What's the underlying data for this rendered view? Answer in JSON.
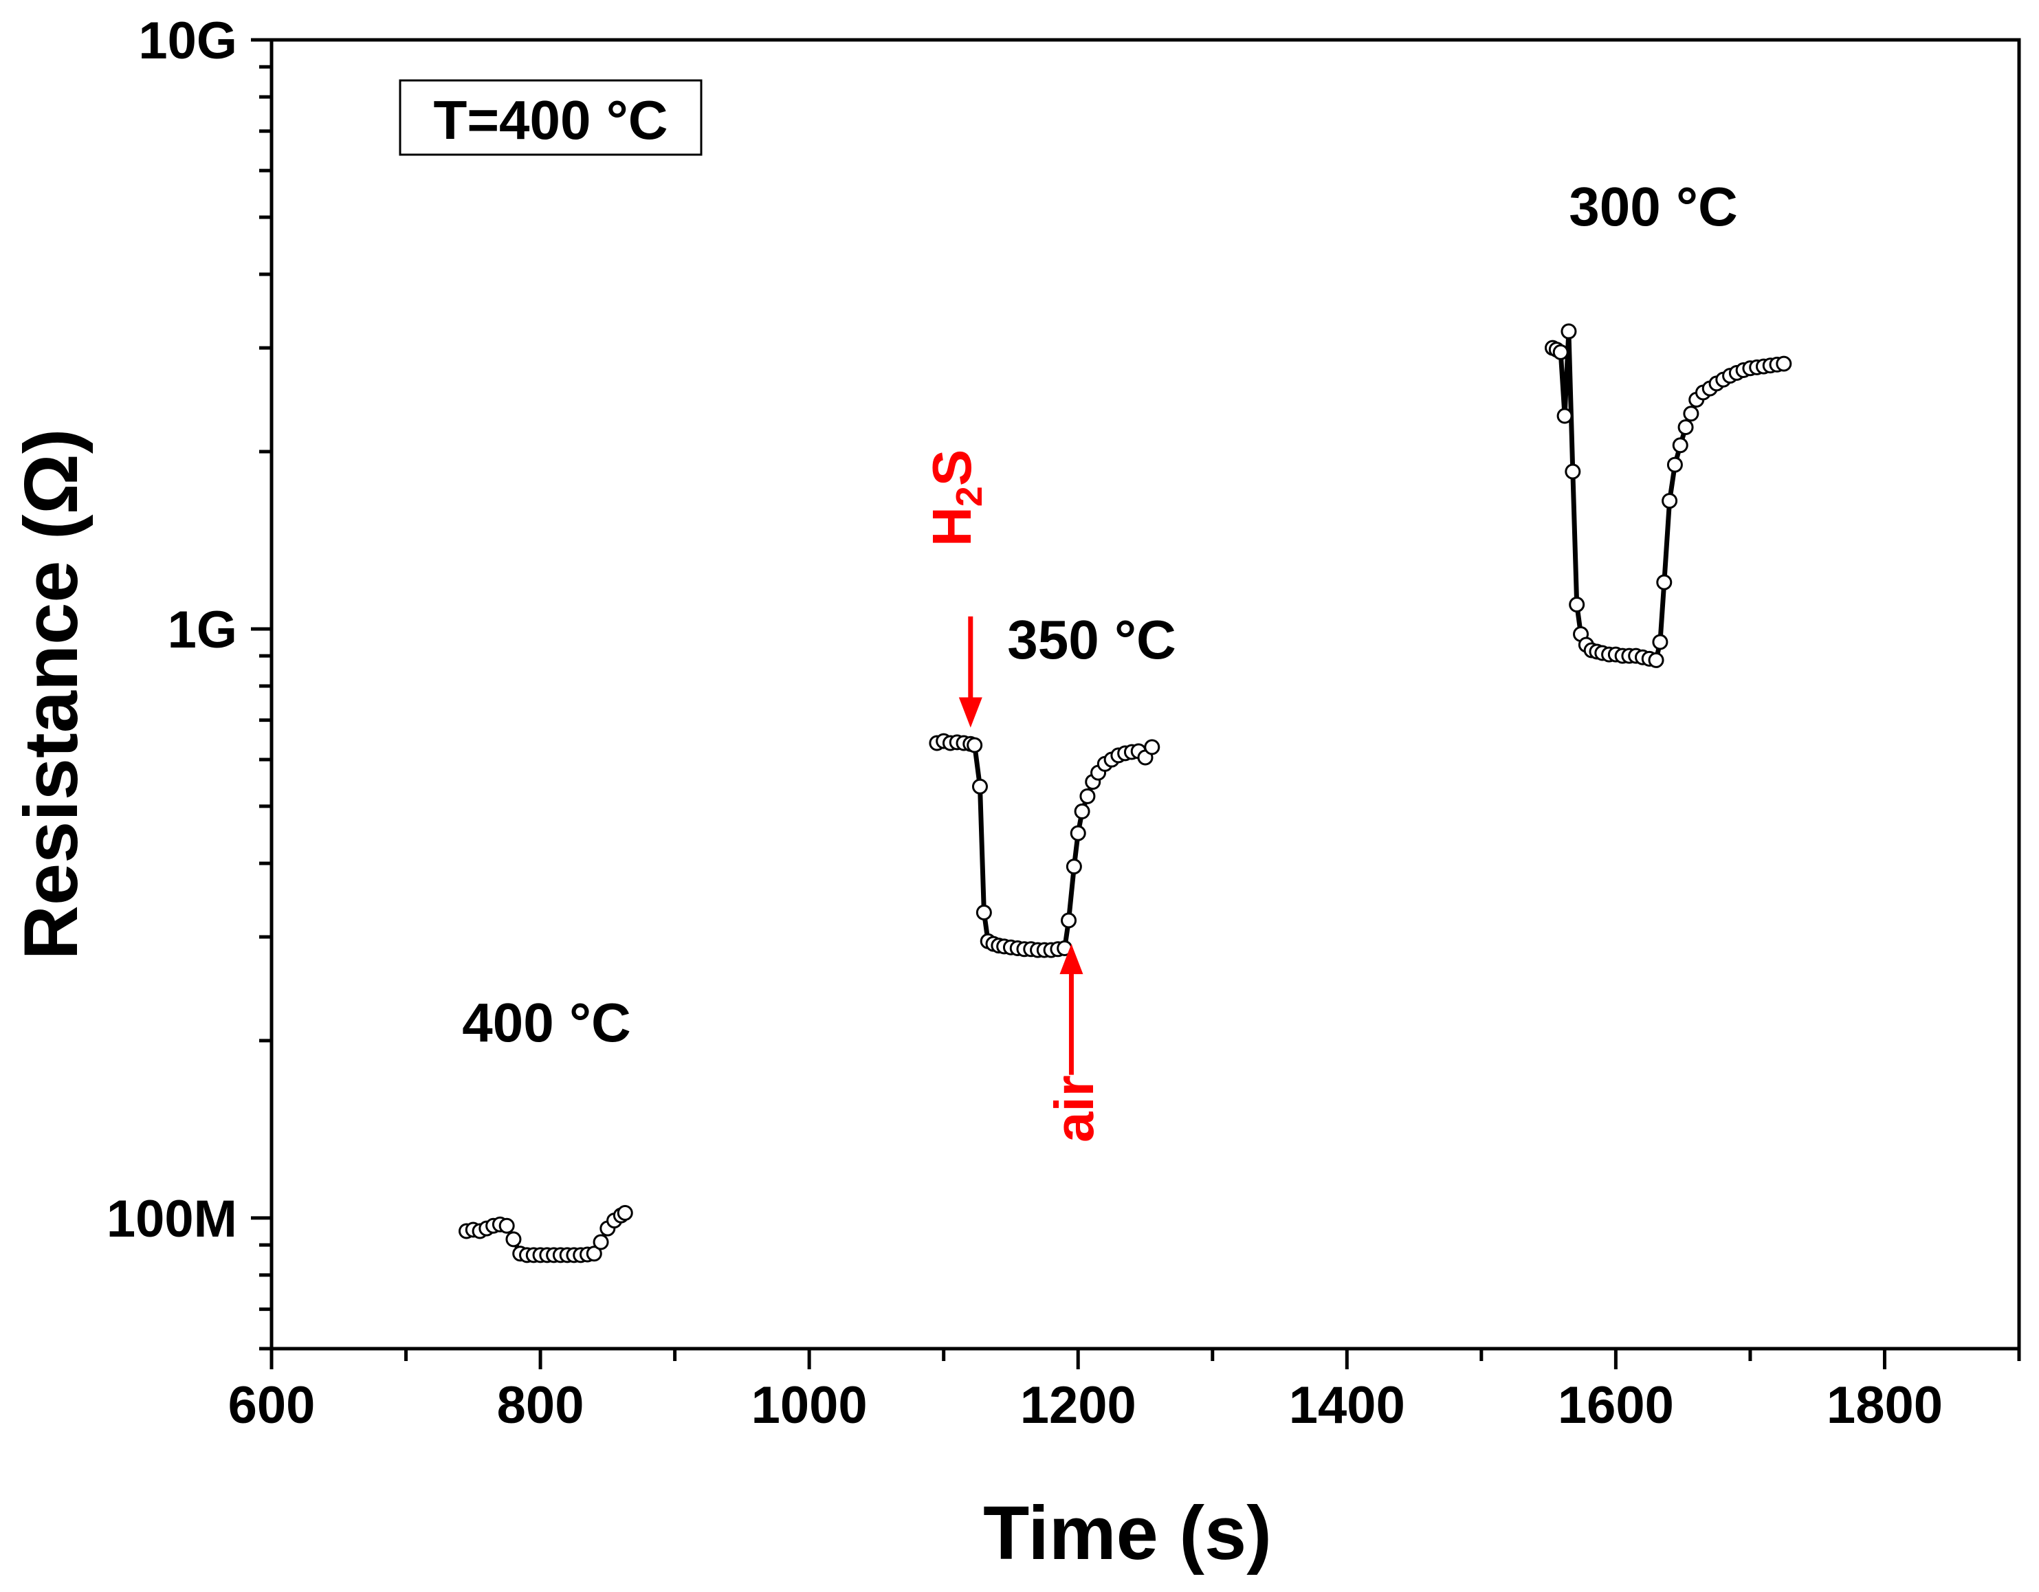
{
  "chart_data": {
    "type": "scatter",
    "title": "",
    "xlabel": "Time (s)",
    "ylabel": "Resistance (Ω)",
    "xlim": [
      600,
      1900
    ],
    "ylim": [
      60000000,
      10000000000
    ],
    "yscale": "log",
    "grid": false,
    "x_ticks": [
      600,
      800,
      1000,
      1200,
      1400,
      1600,
      1800
    ],
    "x_tick_labels": [
      "600",
      "800",
      "1000",
      "1200",
      "1400",
      "1600",
      "1800"
    ],
    "y_ticks": [
      100000000,
      1000000000,
      10000000000
    ],
    "y_tick_labels": [
      "100M",
      "1G",
      "10G"
    ],
    "inset_label": "T=400 °C",
    "series": [
      {
        "name": "400 °C",
        "label": "400 °C",
        "x": [
          745,
          750,
          755,
          760,
          765,
          770,
          775,
          780,
          785,
          790,
          795,
          800,
          805,
          810,
          815,
          820,
          825,
          830,
          835,
          840,
          845,
          850,
          855,
          860,
          863
        ],
        "y": [
          95000000,
          95500000,
          95000000,
          96000000,
          97000000,
          97500000,
          97000000,
          92000000,
          87000000,
          86500000,
          86500000,
          86500000,
          86500000,
          86500000,
          86500000,
          86500000,
          86500000,
          86500000,
          86700000,
          87000000,
          91000000,
          96000000,
          99000000,
          101000000,
          102000000
        ]
      },
      {
        "name": "350 °C",
        "label": "350 °C",
        "x": [
          1095,
          1100,
          1105,
          1110,
          1115,
          1120,
          1123,
          1127,
          1130,
          1133,
          1137,
          1141,
          1145,
          1150,
          1155,
          1160,
          1165,
          1170,
          1175,
          1180,
          1185,
          1190,
          1193,
          1197,
          1200,
          1203,
          1207,
          1211,
          1215,
          1220,
          1225,
          1230,
          1235,
          1240,
          1245,
          1250,
          1255
        ],
        "y": [
          640000000,
          645000000,
          640000000,
          642000000,
          640000000,
          638000000,
          635000000,
          540000000,
          330000000,
          295000000,
          292000000,
          290000000,
          289000000,
          288000000,
          287000000,
          286000000,
          286000000,
          285000000,
          285000000,
          285000000,
          286000000,
          287000000,
          320000000,
          395000000,
          450000000,
          490000000,
          520000000,
          550000000,
          570000000,
          590000000,
          600000000,
          610000000,
          615000000,
          618000000,
          620000000,
          605000000,
          630000000
        ]
      },
      {
        "name": "300 °C",
        "label": "300 °C",
        "x": [
          1553,
          1556,
          1559,
          1562,
          1565,
          1568,
          1571,
          1574,
          1578,
          1582,
          1586,
          1590,
          1595,
          1600,
          1605,
          1610,
          1615,
          1620,
          1625,
          1630,
          1633,
          1636,
          1640,
          1644,
          1648,
          1652,
          1656,
          1660,
          1665,
          1670,
          1675,
          1680,
          1685,
          1690,
          1695,
          1700,
          1705,
          1710,
          1715,
          1720,
          1725
        ],
        "y": [
          3000000000,
          2980000000,
          2950000000,
          2300000000,
          3200000000,
          1850000000,
          1100000000,
          980000000,
          940000000,
          920000000,
          915000000,
          910000000,
          905000000,
          905000000,
          900000000,
          900000000,
          900000000,
          895000000,
          890000000,
          885000000,
          950000000,
          1200000000,
          1650000000,
          1900000000,
          2050000000,
          2200000000,
          2320000000,
          2450000000,
          2520000000,
          2560000000,
          2610000000,
          2650000000,
          2690000000,
          2720000000,
          2750000000,
          2770000000,
          2780000000,
          2790000000,
          2800000000,
          2810000000,
          2820000000
        ]
      }
    ],
    "annotations": [
      {
        "text": "H2S",
        "main": "H",
        "subscript": "2",
        "tail": "S",
        "color": "#ff0000",
        "direction": "down",
        "x": 1120,
        "arrow_tip_y": 680000000,
        "arrow_start_y": 1050000000
      },
      {
        "text": "air",
        "color": "#ff0000",
        "direction": "up",
        "x": 1195,
        "arrow_tip_y": 292000000,
        "arrow_start_y": 175000000
      }
    ]
  }
}
